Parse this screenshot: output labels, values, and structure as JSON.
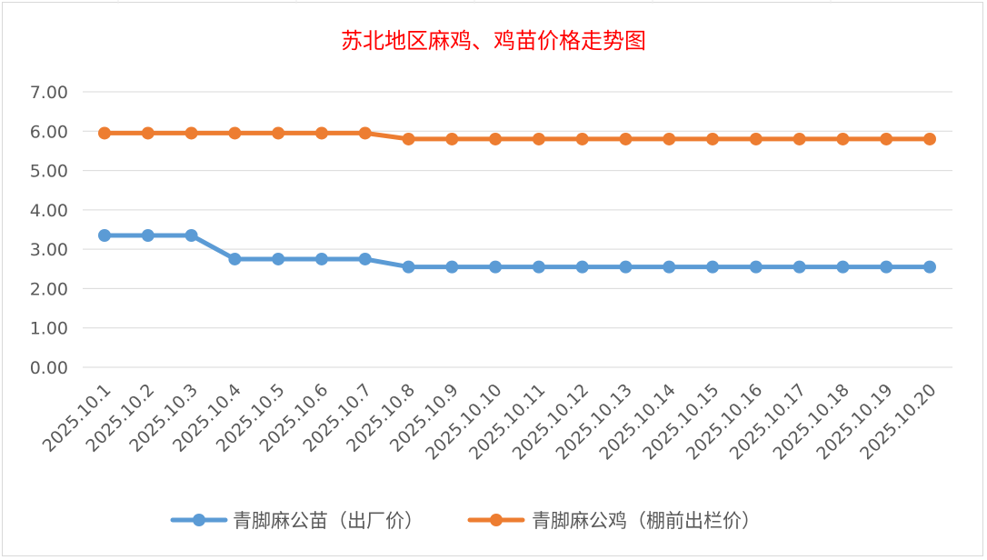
{
  "chart_data": {
    "type": "line",
    "title": "苏北地区麻鸡、鸡苗价格走势图",
    "xlabel": "",
    "ylabel": "",
    "categories": [
      "2025.10.1",
      "2025.10.2",
      "2025.10.3",
      "2025.10.4",
      "2025.10.5",
      "2025.10.6",
      "2025.10.7",
      "2025.10.8",
      "2025.10.9",
      "2025.10.10",
      "2025.10.11",
      "2025.10.12",
      "2025.10.13",
      "2025.10.14",
      "2025.10.15",
      "2025.10.16",
      "2025.10.17",
      "2025.10.18",
      "2025.10.19",
      "2025.10.20"
    ],
    "ylim": [
      0,
      7
    ],
    "yticks": [
      "0.00",
      "1.00",
      "2.00",
      "3.00",
      "4.00",
      "5.00",
      "6.00",
      "7.00"
    ],
    "grid": true,
    "legend_position": "bottom",
    "series": [
      {
        "name": "青脚麻公苗（出厂价）",
        "color": "#5b9bd5",
        "values": [
          3.35,
          3.35,
          3.35,
          2.75,
          2.75,
          2.75,
          2.75,
          2.55,
          2.55,
          2.55,
          2.55,
          2.55,
          2.55,
          2.55,
          2.55,
          2.55,
          2.55,
          2.55,
          2.55,
          2.55
        ]
      },
      {
        "name": "青脚麻公鸡（棚前出栏价）",
        "color": "#ed7d31",
        "values": [
          5.95,
          5.95,
          5.95,
          5.95,
          5.95,
          5.95,
          5.95,
          5.8,
          5.8,
          5.8,
          5.8,
          5.8,
          5.8,
          5.8,
          5.8,
          5.8,
          5.8,
          5.8,
          5.8,
          5.8
        ]
      }
    ]
  }
}
